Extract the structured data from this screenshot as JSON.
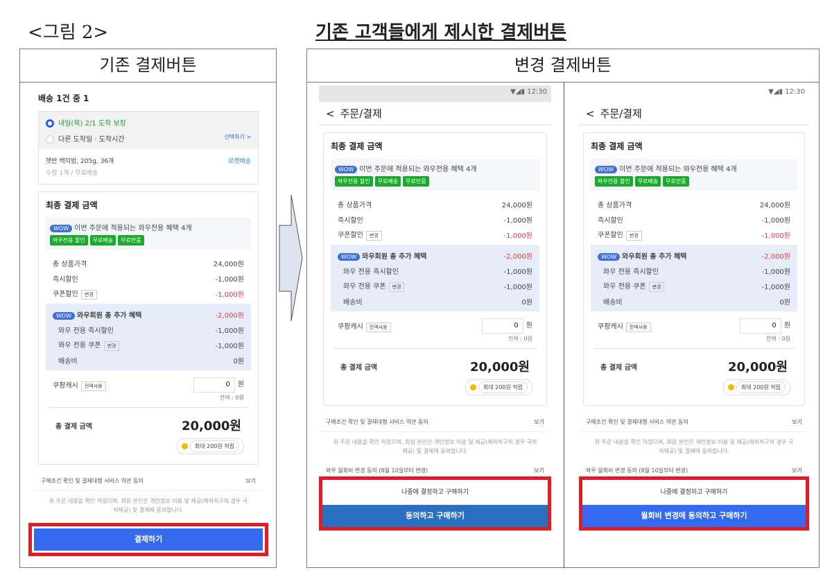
{
  "figure_label": "<그림 2>",
  "title": "기존 고객들에게 제시한 결제버튼",
  "left_header": "기존 결제버튼",
  "right_header": "변경 결제버튼",
  "colors": {
    "blue_button": "#346aef",
    "highlight_frame": "#e01b24",
    "wow_tag": "#1aab2c",
    "discount_red": "#e53945"
  },
  "left": {
    "shipping_title": "배송 1건 중 1",
    "option_selected": "내일(목) 2/1 도착 보장",
    "option_other": "다른 도착일 · 도착시간",
    "option_select_link": "선택하기 >",
    "product": "햇반 백미밥, 205g, 36개",
    "product_sub": "수량 1개 / 무료배송",
    "rocket": "로켓배송"
  },
  "summary": {
    "title": "최종 결제 금액",
    "wow_label": "WOW",
    "wow_text": "이번 주문에 적용되는 와우전용 혜택 4개",
    "tags": [
      "와우전용 할인",
      "무료배송",
      "무료반품"
    ],
    "rows": [
      {
        "label": "총 상품가격",
        "value": "24,000원"
      },
      {
        "label": "즉시할인",
        "value": "-1,000원"
      },
      {
        "label": "쿠폰할인",
        "btn": "변경",
        "value": "-1,000원",
        "red": true
      }
    ],
    "wow_member": "와우회원 총 추가 혜택",
    "wow_member_value": "-2,000원",
    "wow_rows": [
      {
        "label": "와우 전용 즉시할인",
        "value": "-1,000원"
      },
      {
        "label": "와우 전용 쿠폰",
        "btn": "변경",
        "value": "-1,000원"
      },
      {
        "label": "배송비",
        "value": "0원"
      }
    ],
    "cash_label": "쿠팡캐시",
    "cash_btn": "전액사용",
    "cash_value": "0",
    "cash_unit": "원",
    "balance": "잔여 : 0원",
    "total_label": "총 결제 금액",
    "total_value": "20,000원",
    "points": "최대 200원 적립",
    "terms": "구매조건 확인 및 결제대행 서비스 약관 동의",
    "view": "보기",
    "note": "위 주문 내용을 확인 하였으며, 회원 본인은 개인정보 이용 및 제공(해외직구의 경우 국외제공) 및 결제에 동의합니다.",
    "wow_fee": "와우 월회비 변경 동의 (8월 10일부터 변경)"
  },
  "phone": {
    "time": "12:30",
    "nav_title": "주문/결제",
    "back": "<"
  },
  "buttons": {
    "old": "결제하기",
    "later": "나중에 결정하고 구매하기",
    "middle_agree": "동의하고 구매하기",
    "right_agree": "월회비 변경에 동의하고 구매하기"
  }
}
